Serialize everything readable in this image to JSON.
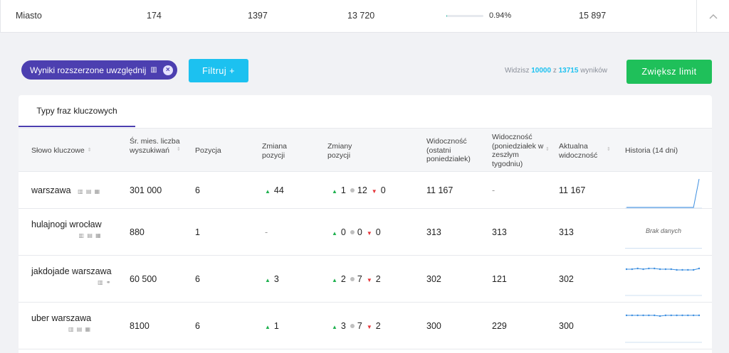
{
  "summary_row": {
    "name": "Miasto",
    "col1": "174",
    "col2": "1397",
    "col3": "13 720",
    "visibility_pct": "0.94%",
    "visibility_fraction": 0.0094,
    "col5": "15 897"
  },
  "filters": {
    "chip_label": "Wyniki rozszerzone uwzględnij",
    "filter_button": "Filtruj +"
  },
  "results": {
    "prefix": "Widzisz",
    "shown": "10000",
    "mid": "z",
    "total": "13715",
    "suffix": "wyników",
    "limit_button": "Zwiększ limit"
  },
  "tab_label": "Typy fraz kluczowych",
  "columns": {
    "keyword": "Słowo kluczowe",
    "volume": "Śr. mies. liczba wyszukiwań",
    "position": "Pozycja",
    "position_change": "Zmiana pozycji",
    "position_changes": "Zmiany pozycji",
    "visibility_last": "Widoczność (ostatni poniedziałek)",
    "visibility_prev": "Widoczność (poniedziałek w zeszłym tygodniu)",
    "visibility_current": "Aktualna widoczność",
    "history": "Historia (14 dni)"
  },
  "no_data_label": "Brak danych",
  "rows": [
    {
      "keyword": "warszawa",
      "volume": "301 000",
      "position": "6",
      "change": "44",
      "up": "1",
      "same": "12",
      "down": "0",
      "vis_last": "11 167",
      "vis_prev": "-",
      "vis_current": "11 167",
      "history": [
        0,
        0,
        0,
        0,
        0,
        0,
        0,
        0,
        0,
        0,
        0,
        0,
        0,
        40
      ]
    },
    {
      "keyword": "hulajnogi wrocław",
      "volume": "880",
      "position": "1",
      "change": "-",
      "up": "0",
      "same": "0",
      "down": "0",
      "vis_last": "313",
      "vis_prev": "313",
      "vis_current": "313",
      "history": []
    },
    {
      "keyword": "jakdojade warszawa",
      "volume": "60 500",
      "position": "6",
      "change": "3",
      "up": "2",
      "same": "7",
      "down": "2",
      "vis_last": "302",
      "vis_prev": "121",
      "vis_current": "302",
      "history": [
        36,
        36,
        37,
        36,
        37,
        37,
        36,
        36,
        36,
        35,
        35,
        35,
        35,
        37
      ]
    },
    {
      "keyword": "uber warszawa",
      "volume": "8100",
      "position": "6",
      "change": "1",
      "up": "3",
      "same": "7",
      "down": "2",
      "vis_last": "300",
      "vis_prev": "229",
      "vis_current": "300",
      "history": [
        37,
        37,
        37,
        37,
        37,
        37,
        36,
        37,
        37,
        37,
        37,
        37,
        37,
        37
      ]
    }
  ]
}
